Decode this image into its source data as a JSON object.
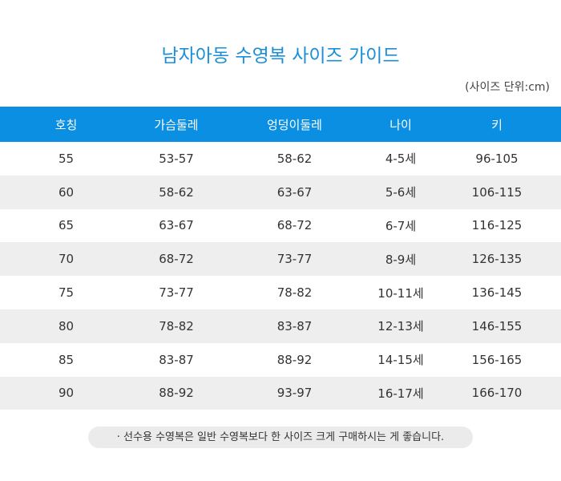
{
  "title": "남자아동 수영복 사이즈  가이드",
  "unit_note": "(사이즈 단위:cm)",
  "table": {
    "headers": [
      "호칭",
      "가슴둘레",
      "엉덩이둘레",
      "나이",
      "키"
    ],
    "rows": [
      [
        "55",
        "53-57",
        "58-62",
        "4-5세",
        "96-105"
      ],
      [
        "60",
        "58-62",
        "63-67",
        "5-6세",
        "106-115"
      ],
      [
        "65",
        "63-67",
        "68-72",
        "6-7세",
        "116-125"
      ],
      [
        "70",
        "68-72",
        "73-77",
        "8-9세",
        "126-135"
      ],
      [
        "75",
        "73-77",
        "78-82",
        "10-11세",
        "136-145"
      ],
      [
        "80",
        "78-82",
        "83-87",
        "12-13세",
        "146-155"
      ],
      [
        "85",
        "83-87",
        "88-92",
        "14-15세",
        "156-165"
      ],
      [
        "90",
        "88-92",
        "93-97",
        "16-17세",
        "166-170"
      ]
    ]
  },
  "footnote": "· 선수용 수영복은 일반 수영복보다 한 사이즈 크게 구매하시는 게 좋습니다.",
  "colors": {
    "accent": "#0a8fe2",
    "title": "#1a8fd8",
    "row_alt": "#eeeeee"
  }
}
